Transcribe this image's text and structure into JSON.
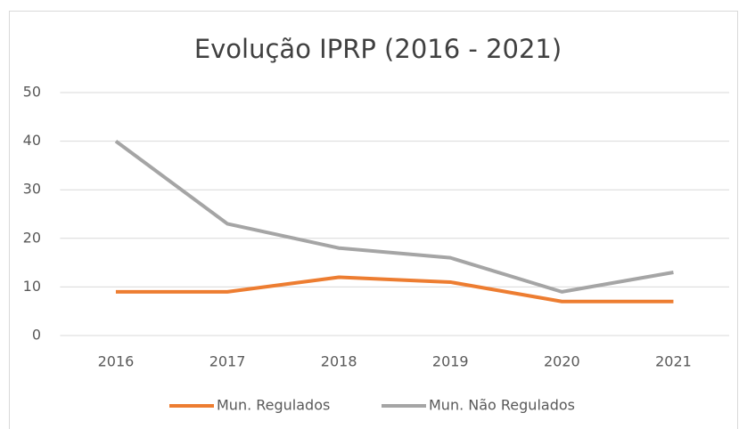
{
  "chart_data": {
    "type": "line",
    "title": "Evolução IPRP (2016 - 2021)",
    "categories": [
      "2016",
      "2017",
      "2018",
      "2019",
      "2020",
      "2021"
    ],
    "series": [
      {
        "name": "Mun. Regulados",
        "color": "#ed7d31",
        "values": [
          9,
          9,
          12,
          11,
          7,
          7
        ]
      },
      {
        "name": "Mun. Não Regulados",
        "color": "#a5a5a5",
        "values": [
          40,
          23,
          18,
          16,
          9,
          13
        ]
      }
    ],
    "ylim": [
      0,
      50
    ],
    "yticks": [
      0,
      10,
      20,
      30,
      40,
      50
    ],
    "grid": true,
    "legend": "bottom"
  }
}
